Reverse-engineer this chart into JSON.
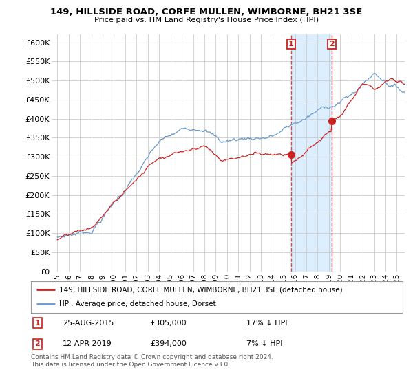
{
  "title1": "149, HILLSIDE ROAD, CORFE MULLEN, WIMBORNE, BH21 3SE",
  "title2": "Price paid vs. HM Land Registry's House Price Index (HPI)",
  "ylim": [
    0,
    620000
  ],
  "yticks": [
    0,
    50000,
    100000,
    150000,
    200000,
    250000,
    300000,
    350000,
    400000,
    450000,
    500000,
    550000,
    600000
  ],
  "ytick_labels": [
    "£0",
    "£50K",
    "£100K",
    "£150K",
    "£200K",
    "£250K",
    "£300K",
    "£350K",
    "£400K",
    "£450K",
    "£500K",
    "£550K",
    "£600K"
  ],
  "hpi_color": "#6699cc",
  "sale_color": "#cc2222",
  "marker1_year": 2015.65,
  "marker1_price": 305000,
  "marker2_year": 2019.27,
  "marker2_price": 394000,
  "legend_sale": "149, HILLSIDE ROAD, CORFE MULLEN, WIMBORNE, BH21 3SE (detached house)",
  "legend_hpi": "HPI: Average price, detached house, Dorset",
  "note1_date": "25-AUG-2015",
  "note1_price": "£305,000",
  "note1_hpi": "17% ↓ HPI",
  "note2_date": "12-APR-2019",
  "note2_price": "£394,000",
  "note2_hpi": "7% ↓ HPI",
  "footer": "Contains HM Land Registry data © Crown copyright and database right 2024.\nThis data is licensed under the Open Government Licence v3.0.",
  "bg_color": "#ffffff",
  "plot_bg": "#ffffff",
  "grid_color": "#cccccc",
  "shade_color": "#ddeeff"
}
